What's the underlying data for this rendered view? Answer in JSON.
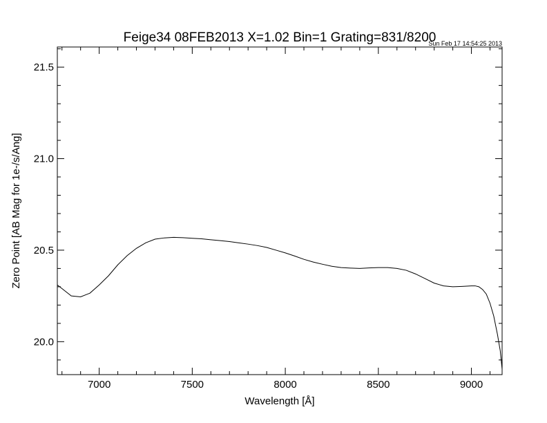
{
  "chart_data": {
    "type": "line",
    "title": "Feige34 08FEB2013 X=1.02 Bin=1 Grating=831/8200",
    "timestamp": "Sun Feb 17 14:54:25 2013",
    "xlabel": "Wavelength [Å]",
    "ylabel": "Zero Point [AB Mag for 1e-/s/Ang]",
    "xlim": [
      6775,
      9165
    ],
    "ylim": [
      19.82,
      21.61
    ],
    "xticks": [
      7000,
      7500,
      8000,
      8500,
      9000
    ],
    "xtick_labels": [
      "7000",
      "7500",
      "8000",
      "8500",
      "9000"
    ],
    "yticks": [
      20.0,
      20.5,
      21.0,
      21.5
    ],
    "ytick_labels": [
      "20.0",
      "20.5",
      "21.0",
      "21.5"
    ],
    "grid": false,
    "color": "#000000",
    "series": [
      {
        "x": [
          6775,
          6800,
          6850,
          6900,
          6950,
          7000,
          7050,
          7100,
          7150,
          7200,
          7250,
          7300,
          7350,
          7400,
          7450,
          7500,
          7550,
          7600,
          7650,
          7700,
          7750,
          7800,
          7850,
          7900,
          7950,
          8000,
          8050,
          8100,
          8150,
          8200,
          8250,
          8300,
          8350,
          8400,
          8450,
          8500,
          8550,
          8600,
          8650,
          8700,
          8750,
          8800,
          8850,
          8900,
          8950,
          9000,
          9020,
          9040,
          9060,
          9080,
          9100,
          9120,
          9140,
          9155,
          9165
        ],
        "y": [
          20.31,
          20.29,
          20.25,
          20.245,
          20.265,
          20.31,
          20.36,
          20.42,
          20.47,
          20.51,
          20.54,
          20.56,
          20.567,
          20.57,
          20.568,
          20.565,
          20.562,
          20.557,
          20.552,
          20.547,
          20.54,
          20.533,
          20.525,
          20.515,
          20.5,
          20.485,
          20.468,
          20.45,
          20.435,
          20.423,
          20.412,
          20.405,
          20.402,
          20.4,
          20.403,
          20.405,
          20.405,
          20.4,
          20.39,
          20.37,
          20.345,
          20.32,
          20.305,
          20.3,
          20.302,
          20.305,
          20.305,
          20.3,
          20.285,
          20.26,
          20.21,
          20.14,
          20.04,
          19.95,
          19.85
        ]
      }
    ]
  }
}
